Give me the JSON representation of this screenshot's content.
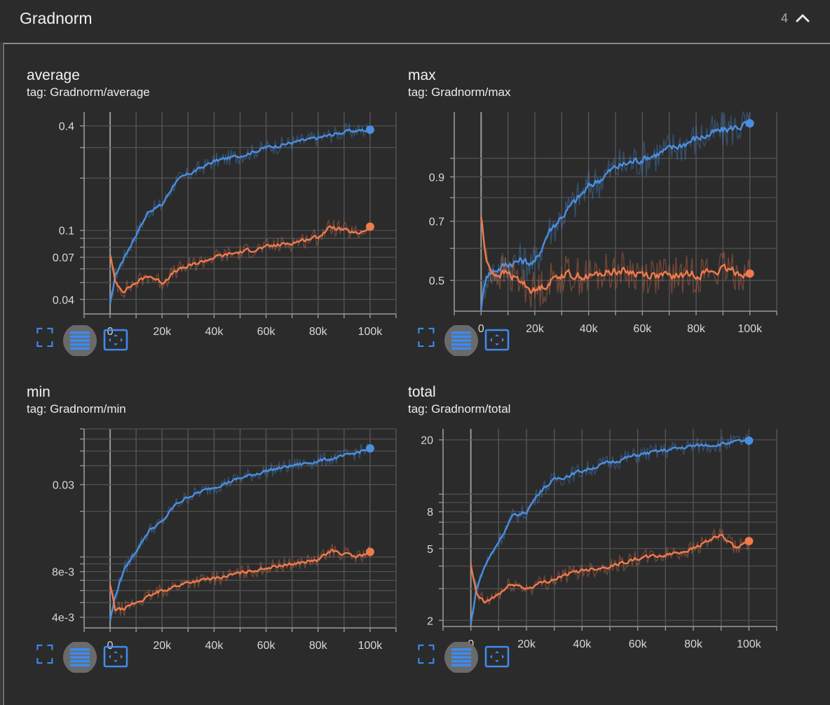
{
  "header": {
    "title": "Gradnorm",
    "count": "4"
  },
  "icons": {
    "fullscreen": "fullscreen-icon",
    "log_scale": "log-scale-icon",
    "fit_domain": "fit-domain-icon",
    "collapse": "chevron-up-icon"
  },
  "colors": {
    "series_blue": "#4a8ee0",
    "series_orange": "#f07a4c",
    "accent": "#3d8bf0",
    "background": "#2b2b2b"
  },
  "cards": [
    {
      "title": "average",
      "tag": "tag: Gradnorm/average",
      "chart_data": {
        "type": "line",
        "scale": "log",
        "x_ticks": [
          "0",
          "20k",
          "40k",
          "60k",
          "80k",
          "100k"
        ],
        "y_ticks": [
          {
            "v": 0.4,
            "label": "0.4"
          },
          {
            "v": 0.1,
            "label": "0.1"
          },
          {
            "v": 0.07,
            "label": "0.07"
          },
          {
            "v": 0.04,
            "label": "0.04"
          }
        ],
        "xlim": [
          -10000,
          110000
        ],
        "ylim": [
          0.033,
          0.48
        ],
        "grid": true,
        "series": [
          {
            "color": "#4a8ee0",
            "x": [
              0,
              2000,
              5000,
              10000,
              15000,
              20000,
              25000,
              30000,
              40000,
              50000,
              60000,
              70000,
              80000,
              90000,
              100000
            ],
            "y": [
              0.037,
              0.055,
              0.068,
              0.095,
              0.13,
              0.14,
              0.19,
              0.21,
              0.25,
              0.27,
              0.3,
              0.32,
              0.34,
              0.37,
              0.38
            ]
          },
          {
            "color": "#f07a4c",
            "x": [
              0,
              2000,
              5000,
              10000,
              15000,
              20000,
              25000,
              30000,
              40000,
              50000,
              60000,
              70000,
              80000,
              85000,
              90000,
              95000,
              100000
            ],
            "y": [
              0.073,
              0.05,
              0.045,
              0.05,
              0.055,
              0.05,
              0.058,
              0.062,
              0.07,
              0.075,
              0.08,
              0.085,
              0.092,
              0.105,
              0.1,
              0.095,
              0.105
            ]
          }
        ]
      }
    },
    {
      "title": "max",
      "tag": "tag: Gradnorm/max",
      "chart_data": {
        "type": "line",
        "scale": "log",
        "x_ticks": [
          "0",
          "20k",
          "40k",
          "60k",
          "80k",
          "100k"
        ],
        "y_ticks": [
          {
            "v": 0.9,
            "label": "0.9"
          },
          {
            "v": 0.7,
            "label": "0.7"
          },
          {
            "v": 0.5,
            "label": "0.5"
          }
        ],
        "xlim": [
          -10000,
          110000
        ],
        "ylim": [
          0.42,
          1.3
        ],
        "grid": true,
        "series": [
          {
            "color": "#4a8ee0",
            "x": [
              0,
              2000,
              5000,
              10000,
              15000,
              20000,
              25000,
              30000,
              40000,
              50000,
              60000,
              70000,
              80000,
              90000,
              100000
            ],
            "y": [
              0.43,
              0.52,
              0.53,
              0.55,
              0.56,
              0.55,
              0.66,
              0.72,
              0.85,
              0.95,
              1.0,
              1.05,
              1.12,
              1.17,
              1.22
            ]
          },
          {
            "color": "#f07a4c",
            "x": [
              0,
              2000,
              5000,
              10000,
              20000,
              30000,
              40000,
              50000,
              60000,
              70000,
              80000,
              90000,
              100000
            ],
            "y": [
              0.72,
              0.55,
              0.52,
              0.52,
              0.47,
              0.52,
              0.51,
              0.53,
              0.52,
              0.51,
              0.52,
              0.53,
              0.52
            ]
          }
        ]
      }
    },
    {
      "title": "min",
      "tag": "tag: Gradnorm/min",
      "chart_data": {
        "type": "line",
        "scale": "log",
        "x_ticks": [
          "0",
          "20k",
          "40k",
          "60k",
          "80k",
          "100k"
        ],
        "y_ticks": [
          {
            "v": 0.03,
            "label": "0.03"
          },
          {
            "v": 0.008,
            "label": "8e-3"
          },
          {
            "v": 0.004,
            "label": "4e-3"
          }
        ],
        "xlim": [
          -10000,
          110000
        ],
        "ylim": [
          0.0034,
          0.07
        ],
        "grid": true,
        "series": [
          {
            "color": "#4a8ee0",
            "x": [
              0,
              2000,
              5000,
              10000,
              15000,
              20000,
              25000,
              30000,
              40000,
              50000,
              60000,
              70000,
              80000,
              90000,
              100000
            ],
            "y": [
              0.0038,
              0.0055,
              0.008,
              0.011,
              0.015,
              0.017,
              0.022,
              0.025,
              0.029,
              0.033,
              0.037,
              0.04,
              0.043,
              0.046,
              0.052
            ]
          },
          {
            "color": "#f07a4c",
            "x": [
              0,
              2000,
              5000,
              10000,
              20000,
              30000,
              40000,
              50000,
              60000,
              70000,
              80000,
              85000,
              90000,
              95000,
              100000
            ],
            "y": [
              0.0065,
              0.0045,
              0.0045,
              0.005,
              0.006,
              0.0068,
              0.0072,
              0.0078,
              0.0085,
              0.009,
              0.0095,
              0.011,
              0.0105,
              0.01,
              0.0108
            ]
          }
        ]
      }
    },
    {
      "title": "total",
      "tag": "tag: Gradnorm/total",
      "chart_data": {
        "type": "line",
        "scale": "log",
        "x_ticks": [
          "0",
          "20k",
          "40k",
          "60k",
          "80k",
          "100k"
        ],
        "y_ticks": [
          {
            "v": 20,
            "label": "20"
          },
          {
            "v": 8,
            "label": "8"
          },
          {
            "v": 5,
            "label": "5"
          },
          {
            "v": 2,
            "label": "2"
          }
        ],
        "xlim": [
          -10000,
          110000
        ],
        "ylim": [
          1.85,
          23
        ],
        "grid": true,
        "series": [
          {
            "color": "#4a8ee0",
            "x": [
              0,
              2000,
              5000,
              10000,
              15000,
              20000,
              25000,
              30000,
              40000,
              50000,
              60000,
              70000,
              80000,
              90000,
              100000
            ],
            "y": [
              1.9,
              3.0,
              4.0,
              5.5,
              7.5,
              8.0,
              10.5,
              12.0,
              13.5,
              15.0,
              16.5,
              17.5,
              18.5,
              19.0,
              19.8
            ]
          },
          {
            "color": "#f07a4c",
            "x": [
              0,
              2000,
              5000,
              10000,
              15000,
              20000,
              25000,
              30000,
              40000,
              50000,
              60000,
              70000,
              80000,
              85000,
              90000,
              95000,
              100000
            ],
            "y": [
              4.0,
              2.8,
              2.5,
              2.8,
              3.2,
              3.0,
              3.2,
              3.4,
              3.8,
              4.0,
              4.4,
              4.6,
              5.0,
              5.5,
              5.9,
              5.0,
              5.5
            ]
          }
        ]
      }
    }
  ]
}
